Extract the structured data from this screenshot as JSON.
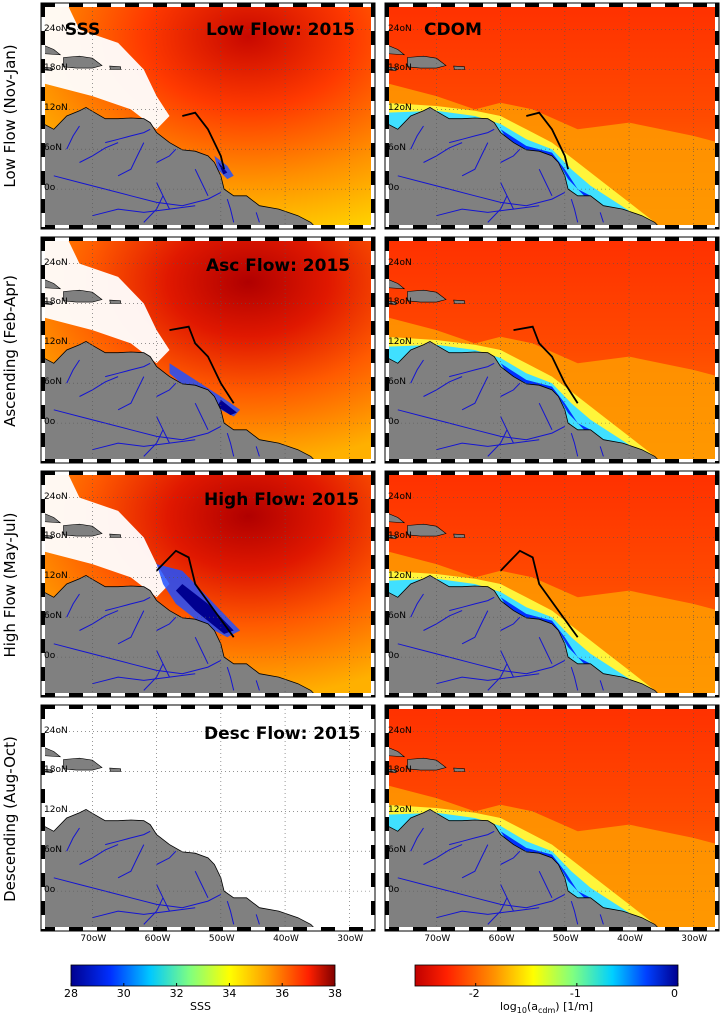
{
  "column_titles": {
    "sss": "SSS",
    "cdom": "CDOM"
  },
  "panel_titles": [
    "Low Flow: 2015",
    "Asc Flow: 2015",
    "High Flow: 2015",
    "Desc Flow: 2015"
  ],
  "row_labels": [
    "Low Flow (Nov-Jan)",
    "Ascending (Feb-Apr)",
    "High Flow (May-Jul)",
    "Descending (Aug-Oct)"
  ],
  "lat_ticks": [
    "24oN",
    "18oN",
    "12oN",
    "6oN",
    "0o"
  ],
  "lon_ticks": [
    "70oW",
    "60oW",
    "50oW",
    "40oW",
    "30oW"
  ],
  "colorbar_sss": {
    "ticks": [
      "28",
      "30",
      "32",
      "34",
      "36",
      "38"
    ],
    "label": "SSS",
    "min": 28,
    "max": 38
  },
  "colorbar_cdom": {
    "ticks": [
      "-2",
      "-1",
      "0"
    ],
    "label": "log10(acdm) [1/m]",
    "min": -2.6,
    "max": 0
  },
  "colors": {
    "land": "#808080",
    "rivers": "#1414d2",
    "sss_high": "#e01c00",
    "sss_low": "#0000b0",
    "cdom_open": "#ff3a00"
  },
  "chart_data": {
    "type": "heatmap",
    "description_panels": [
      {
        "row": "Low Flow (Nov-Jan)",
        "variables": [
          "SSS",
          "CDOM"
        ]
      },
      {
        "row": "Ascending (Feb-Apr)",
        "variables": [
          "SSS",
          "CDOM"
        ]
      },
      {
        "row": "High Flow (May-Jul)",
        "variables": [
          "SSS",
          "CDOM"
        ]
      },
      {
        "row": "Descending (Aug-Oct)",
        "variables": [
          "SSS",
          "CDOM"
        ]
      }
    ],
    "x_range": [
      -78,
      -26
    ],
    "y_range": [
      -6,
      28
    ],
    "sss_range": [
      28,
      38
    ],
    "cdom_range": [
      -2.6,
      0
    ]
  }
}
